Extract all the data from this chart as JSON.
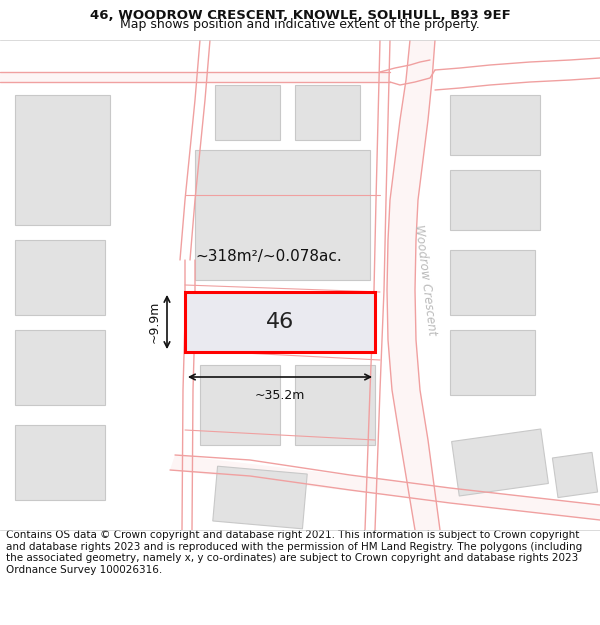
{
  "title_line1": "46, WOODROW CRESCENT, KNOWLE, SOLIHULL, B93 9EF",
  "title_line2": "Map shows position and indicative extent of the property.",
  "footer_text": "Contains OS data © Crown copyright and database right 2021. This information is subject to Crown copyright and database rights 2023 and is reproduced with the permission of HM Land Registry. The polygons (including the associated geometry, namely x, y co-ordinates) are subject to Crown copyright and database rights 2023 Ordnance Survey 100026316.",
  "bg_color": "#ffffff",
  "road_color": "#f0a0a0",
  "road_fill": "#fdf5f5",
  "building_fill": "#e2e2e2",
  "building_edge": "#c8c8c8",
  "highlight_fill": "#eaeaf0",
  "highlight_edge": "#ff0000",
  "highlight_lw": 2.2,
  "street_label": "Woodrow Crescent",
  "property_number": "46",
  "area_text": "~318m²/~0.078ac.",
  "width_label": "~35.2m",
  "height_label": "~9.9m",
  "title_fontsize": 9.5,
  "subtitle_fontsize": 9.0,
  "footer_fontsize": 7.5,
  "prop_fontsize": 16,
  "area_fontsize": 11,
  "dim_fontsize": 9,
  "street_fontsize": 8.5
}
